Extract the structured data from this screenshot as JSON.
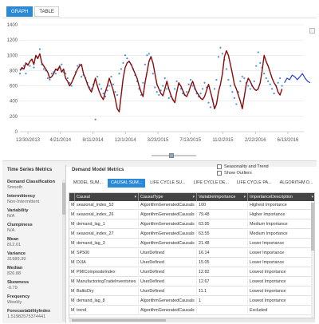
{
  "tabs": [
    {
      "label": "GRAPH"
    },
    {
      "label": "TABLE"
    }
  ],
  "chart_data": {
    "type": "line",
    "y_ticks": [
      "1400",
      "1200",
      "1000",
      "800",
      "600",
      "400",
      "200",
      "0"
    ],
    "ylim": [
      0,
      1400
    ],
    "x_tick_labels": [
      "12/30/2013",
      "4/21/2014",
      "8/11/2014",
      "12/1/2014",
      "3/23/2015",
      "7/13/2015",
      "11/2/2015",
      "2/22/2016",
      "6/13/2016"
    ],
    "series": [
      {
        "color": "#8b0a0a",
        "role": "fitted",
        "values": [
          800,
          840,
          820,
          900,
          870,
          920,
          950,
          880,
          1000,
          960,
          1020,
          900,
          860,
          820,
          780,
          700,
          720,
          760,
          820,
          800,
          860,
          780,
          820,
          700,
          660,
          600,
          640,
          700,
          760,
          820,
          860,
          880,
          760,
          700,
          620,
          560,
          520,
          600,
          700,
          600,
          520,
          460,
          420,
          520,
          600,
          700,
          620,
          540,
          430,
          300,
          260,
          480,
          700,
          840,
          900,
          920,
          880,
          820,
          760,
          700,
          600,
          520,
          460,
          640,
          780,
          920,
          980,
          900,
          760,
          620,
          560,
          500,
          470,
          560,
          660,
          560,
          480,
          420,
          380,
          520,
          640,
          600,
          540,
          480,
          460,
          520,
          600,
          660,
          580,
          520,
          480,
          440,
          420,
          460,
          540,
          620,
          520,
          420,
          300,
          360,
          520,
          620,
          760,
          980,
          1060,
          1000,
          880,
          760,
          620,
          560,
          480,
          400,
          300,
          460,
          620,
          700,
          660,
          600,
          560,
          540,
          560,
          640,
          800,
          1000,
          920,
          860,
          780,
          700,
          640,
          600,
          520,
          480,
          560
        ]
      },
      {
        "color": "#1f3fd6",
        "role": "forecast",
        "values": [
          640,
          700,
          680,
          740,
          720,
          680,
          720,
          760,
          700,
          660,
          640
        ]
      }
    ],
    "points": [
      {
        "color": "#4a90d9",
        "values": [
          760,
          820,
          860,
          760,
          880,
          860,
          940,
          840,
          980,
          960,
          1080,
          880,
          820,
          800,
          700,
          680,
          760,
          780,
          760,
          820,
          840,
          880,
          780,
          760,
          700,
          640,
          600,
          700,
          780,
          860,
          880,
          720,
          740,
          700,
          640,
          580,
          560,
          620,
          160,
          720,
          620,
          560,
          500,
          460,
          540,
          600,
          720,
          620,
          520,
          480,
          760,
          820,
          900,
          1000,
          960,
          920,
          880,
          820,
          740,
          660,
          560,
          480,
          640,
          880,
          1000,
          1020,
          980,
          760,
          580,
          520,
          480,
          540,
          600,
          700,
          560,
          440,
          460,
          420,
          560,
          660,
          620,
          560,
          500,
          480,
          520,
          620,
          680,
          600,
          560,
          500,
          460,
          500,
          560,
          640,
          580,
          380,
          320,
          420,
          560,
          680,
          980,
          1100,
          1020,
          940,
          820,
          680,
          600,
          520,
          440,
          360,
          520,
          660,
          720,
          700,
          640,
          600,
          560,
          600,
          660,
          860,
          1040,
          900,
          840,
          760,
          700,
          660,
          620,
          560,
          500,
          600,
          640,
          700,
          600
        ]
      }
    ]
  },
  "left_panel": {
    "title": "Time Series Metrics",
    "metrics": [
      {
        "label": "Demand Classification",
        "value": "Smooth"
      },
      {
        "label": "Intermittency",
        "value": "Non-Intermittent"
      },
      {
        "label": "Variability",
        "value": "N/A"
      },
      {
        "label": "Clumpiness",
        "value": "N/A"
      },
      {
        "label": "Mean",
        "value": "812.01"
      },
      {
        "label": "Variance",
        "value": "31989.39"
      },
      {
        "label": "Median",
        "value": "826.88"
      },
      {
        "label": "Skewness",
        "value": "-0.79"
      },
      {
        "label": "Frequency",
        "value": "Weekly"
      },
      {
        "label": "ForecastabilityIndex",
        "value": "1.51982575374441"
      }
    ]
  },
  "demand_model": {
    "title": "Demand Model Metrics",
    "checkboxes": [
      {
        "label": "Seasonality and Trend"
      },
      {
        "label": "Show Outliers"
      }
    ],
    "subtabs": [
      {
        "label": "MODEL SUM..."
      },
      {
        "label": "CAUSAL SUM..."
      },
      {
        "label": "LIFE CYCLE SU..."
      },
      {
        "label": "LIFE CYCLE DE..."
      },
      {
        "label": "LIFE CYCLE PA..."
      },
      {
        "label": "ALGORITHM D..."
      }
    ],
    "table": {
      "columns": [
        "",
        "Causal",
        "CausalType",
        "VariableImportance",
        "ImportanceDescription"
      ],
      "rows": [
        [
          "M",
          "seasonal_index_52",
          "AlgorithmGeneratedCausals",
          "100",
          "Highest Importance"
        ],
        [
          "M",
          "seasonal_index_26",
          "AlgorithmGeneratedCausals",
          "79.48",
          "Higher Importance"
        ],
        [
          "M",
          "demand_lag_1",
          "AlgorithmGeneratedCausals",
          "63.95",
          "Medium Importance"
        ],
        [
          "M",
          "seasonal_index_27",
          "AlgorithmGeneratedCausals",
          "63.55",
          "Medium Importance"
        ],
        [
          "M",
          "demand_lag_3",
          "AlgorithmGeneratedCausals",
          "21.48",
          "Lower Importance"
        ],
        [
          "M",
          "SP500",
          "UserDefined",
          "16.14",
          "Lower Importance"
        ],
        [
          "M",
          "DJIA",
          "UserDefined",
          "15.05",
          "Lower Importance"
        ],
        [
          "M",
          "PMICompositeIndex",
          "UserDefined",
          "12.82",
          "Lowest Importance"
        ],
        [
          "M",
          "ManufactoringTradeInventories",
          "UserDefined",
          "12.67",
          "Lowest Importance"
        ],
        [
          "M",
          "BalticDry",
          "UserDefined",
          "11.1",
          "Lowest Importance"
        ],
        [
          "M",
          "demand_lag_8",
          "AlgorithmGeneratedCausals",
          "1",
          "Lowest Importance"
        ],
        [
          "M",
          "trend",
          "AlgorithmGeneratedCausals",
          "",
          "Excluded"
        ]
      ]
    }
  }
}
